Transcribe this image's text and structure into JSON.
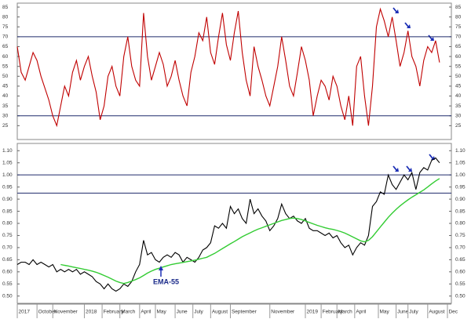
{
  "chart_data": [
    {
      "type": "line",
      "xlim": [
        0,
        110
      ],
      "ylim": [
        18,
        87
      ],
      "yticks": [
        25,
        30,
        35,
        40,
        45,
        50,
        55,
        60,
        65,
        70,
        75,
        80,
        85
      ],
      "hlines": [
        70,
        30
      ],
      "hline_color": "#1f2a6b",
      "series": [
        {
          "color": "#c00000",
          "values": [
            65,
            52,
            48,
            55,
            62,
            58,
            50,
            44,
            38,
            30,
            25,
            35,
            45,
            40,
            52,
            58,
            48,
            55,
            60,
            50,
            42,
            28,
            35,
            50,
            55,
            45,
            40,
            60,
            70,
            55,
            48,
            45,
            82,
            60,
            48,
            55,
            62,
            56,
            45,
            50,
            58,
            48,
            40,
            35,
            52,
            60,
            72,
            68,
            80,
            62,
            56,
            70,
            82,
            66,
            58,
            72,
            83,
            62,
            48,
            40,
            65,
            55,
            48,
            40,
            35,
            45,
            55,
            70,
            58,
            45,
            40,
            52,
            65,
            58,
            48,
            30,
            40,
            48,
            45,
            38,
            50,
            45,
            35,
            28,
            40,
            25,
            55,
            60,
            40,
            25,
            45,
            75,
            84,
            78,
            70,
            80,
            68,
            55,
            62,
            73,
            60,
            55,
            45,
            58,
            65,
            62,
            68,
            57
          ]
        }
      ]
    },
    {
      "type": "line",
      "xlim": [
        0,
        110
      ],
      "ylim": [
        0.47,
        1.13
      ],
      "yticks": [
        {
          "value": 0.5,
          "label": "0.50"
        },
        0.55,
        {
          "value": 0.6,
          "label": "0.60"
        },
        0.65,
        {
          "value": 0.7,
          "label": "0.70"
        },
        0.75,
        {
          "value": 0.8,
          "label": "0.80"
        },
        0.85,
        {
          "value": 0.9,
          "label": "0.90"
        },
        0.95,
        {
          "value": 1,
          "label": "1.00"
        },
        1.05,
        {
          "value": 1.1,
          "label": "1.10"
        }
      ],
      "hlines": [
        1,
        0.925
      ],
      "hline_color": "#1f2a6b",
      "annotation": "EMA-55",
      "xticks": [
        {
          "value": 0,
          "label": "2017"
        },
        {
          "value": 5,
          "label": "October"
        },
        {
          "value": 9,
          "label": "November"
        },
        {
          "value": 17,
          "label": "2018"
        },
        {
          "value": 21.5,
          "label": "February"
        },
        {
          "value": 26,
          "label": "March"
        },
        {
          "value": 31,
          "label": "April"
        },
        {
          "value": 35,
          "label": "May"
        },
        {
          "value": 40,
          "label": "June"
        },
        {
          "value": 44.5,
          "label": "July"
        },
        {
          "value": 49,
          "label": "August"
        },
        {
          "value": 54,
          "label": "September"
        },
        {
          "value": 64,
          "label": "November"
        },
        {
          "value": 73,
          "label": "2019"
        },
        {
          "value": 77,
          "label": "February"
        },
        {
          "value": 81,
          "label": "March"
        },
        {
          "value": 85.5,
          "label": "April"
        },
        {
          "value": 91.5,
          "label": "May"
        },
        {
          "value": 96,
          "label": "June"
        },
        {
          "value": 99,
          "label": "July"
        },
        {
          "value": 104,
          "label": "August"
        },
        {
          "value": 109,
          "label": "Dec"
        }
      ],
      "series": [
        {
          "color": "#000000",
          "values": [
            0.63,
            0.64,
            0.64,
            0.63,
            0.65,
            0.63,
            0.64,
            0.63,
            0.62,
            0.63,
            0.6,
            0.61,
            0.6,
            0.61,
            0.6,
            0.61,
            0.59,
            0.6,
            0.59,
            0.58,
            0.56,
            0.55,
            0.53,
            0.55,
            0.53,
            0.52,
            0.53,
            0.55,
            0.54,
            0.56,
            0.6,
            0.63,
            0.73,
            0.67,
            0.68,
            0.65,
            0.64,
            0.66,
            0.67,
            0.66,
            0.68,
            0.67,
            0.64,
            0.66,
            0.65,
            0.64,
            0.66,
            0.69,
            0.7,
            0.72,
            0.79,
            0.78,
            0.8,
            0.78,
            0.87,
            0.84,
            0.86,
            0.82,
            0.8,
            0.9,
            0.84,
            0.86,
            0.83,
            0.81,
            0.77,
            0.79,
            0.82,
            0.88,
            0.84,
            0.82,
            0.83,
            0.81,
            0.8,
            0.82,
            0.78,
            0.77,
            0.77,
            0.76,
            0.75,
            0.76,
            0.74,
            0.75,
            0.72,
            0.7,
            0.71,
            0.67,
            0.7,
            0.72,
            0.71,
            0.75,
            0.87,
            0.89,
            0.93,
            0.92,
            1.0,
            0.96,
            0.94,
            0.97,
            1.0,
            0.98,
            1.01,
            0.94,
            1.01,
            1.03,
            1.02,
            1.06,
            1.07,
            1.05
          ]
        },
        {
          "color": "#33cc33",
          "values": [
            null,
            null,
            null,
            null,
            null,
            null,
            null,
            null,
            null,
            null,
            null,
            0.63,
            0.627,
            0.624,
            0.62,
            0.617,
            0.614,
            0.61,
            0.607,
            0.603,
            0.598,
            0.592,
            0.585,
            0.578,
            0.57,
            0.562,
            0.556,
            0.552,
            0.556,
            0.562,
            0.568,
            0.575,
            0.585,
            0.595,
            0.603,
            0.61,
            0.615,
            0.62,
            0.625,
            0.63,
            0.633,
            0.636,
            0.639,
            0.642,
            0.645,
            0.648,
            0.652,
            0.656,
            0.66,
            0.668,
            0.676,
            0.686,
            0.696,
            0.706,
            0.716,
            0.725,
            0.735,
            0.745,
            0.753,
            0.761,
            0.769,
            0.776,
            0.782,
            0.788,
            0.794,
            0.8,
            0.806,
            0.812,
            0.816,
            0.82,
            0.822,
            0.82,
            0.816,
            0.81,
            0.804,
            0.798,
            0.792,
            0.787,
            0.782,
            0.778,
            0.775,
            0.771,
            0.766,
            0.76,
            0.752,
            0.744,
            0.736,
            0.728,
            0.724,
            0.73,
            0.745,
            0.765,
            0.785,
            0.805,
            0.825,
            0.842,
            0.858,
            0.872,
            0.885,
            0.897,
            0.908,
            0.918,
            0.928,
            0.938,
            0.95,
            0.963,
            0.975,
            0.985
          ]
        }
      ]
    }
  ]
}
